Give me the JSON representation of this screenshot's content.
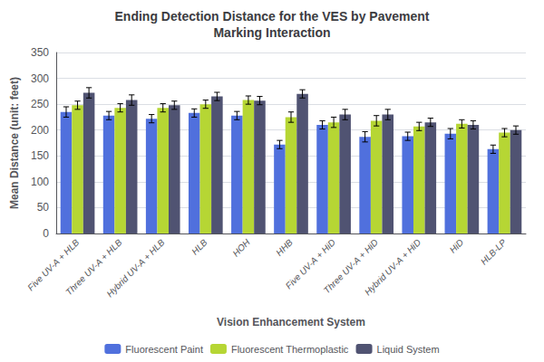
{
  "chart_data": {
    "type": "bar",
    "title": "Ending Detection Distance for the VES by Pavement\nMarking Interaction",
    "xlabel": "Vision Enhancement System",
    "ylabel": "Mean Distance (unit: feet)",
    "categories": [
      "Five UV-A + HLB",
      "Three UV-A + HLB",
      "Hybrid UV-A + HLB",
      "HLB",
      "HOH",
      "HHB",
      "Five UV-A + HiD",
      "Three UV-A + HiD",
      "Hybrid UV-A + HiD",
      "HiD",
      "HLB-LP"
    ],
    "series": [
      {
        "name": "Fluorescent Paint",
        "values": [
          235,
          228,
          222,
          233,
          228,
          172,
          210,
          187,
          188,
          193,
          163
        ],
        "errors": [
          10,
          8,
          8,
          8,
          8,
          8,
          8,
          10,
          8,
          10,
          8
        ]
      },
      {
        "name": "Fluorescent Thermoplastic",
        "values": [
          248,
          243,
          243,
          250,
          258,
          225,
          215,
          218,
          207,
          212,
          195
        ],
        "errors": [
          8,
          8,
          8,
          8,
          8,
          10,
          10,
          10,
          8,
          8,
          8
        ]
      },
      {
        "name": "Liquid System",
        "values": [
          272,
          258,
          248,
          265,
          257,
          270,
          230,
          230,
          215,
          210,
          200
        ],
        "errors": [
          10,
          10,
          8,
          8,
          8,
          8,
          10,
          10,
          8,
          8,
          8
        ]
      }
    ],
    "ylim": [
      0,
      350
    ],
    "yticks": [
      0,
      50,
      100,
      150,
      200,
      250,
      300,
      350
    ],
    "grid": true,
    "legend": "bottom"
  }
}
